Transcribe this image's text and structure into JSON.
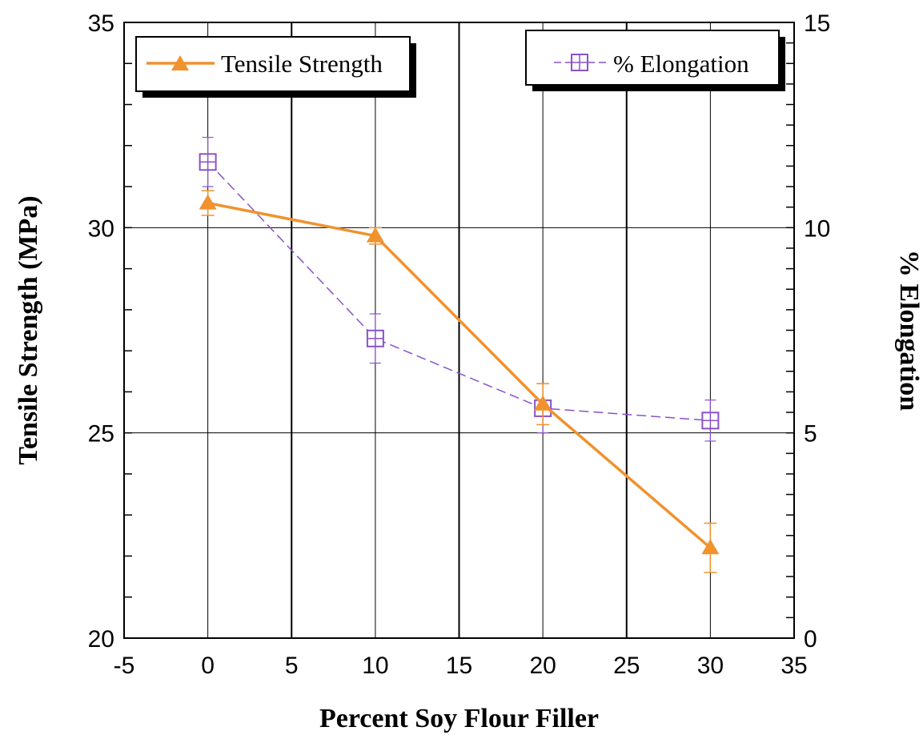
{
  "chart_data": {
    "type": "line",
    "xlabel": "Percent Soy Flour Filler",
    "ylabel": "Tensile Strength (MPa)",
    "y2label": "% Elongation",
    "xlim": [
      -5,
      35
    ],
    "ylim": [
      20,
      35
    ],
    "y2lim": [
      0,
      15
    ],
    "x_ticks": [
      "-5",
      "0",
      "5",
      "10",
      "15",
      "20",
      "25",
      "30",
      "35"
    ],
    "y_ticks": [
      "20",
      "25",
      "30",
      "35"
    ],
    "y2_ticks": [
      "0",
      "5",
      "10",
      "15"
    ],
    "grid": true,
    "legend": [
      "top-left",
      "top-right"
    ],
    "series": [
      {
        "name": "Tensile Strength",
        "axis": "left",
        "color": "#F0922E",
        "marker": "filled-triangle",
        "line": "solid",
        "x": [
          0,
          10,
          20,
          30
        ],
        "y": [
          30.6,
          29.8,
          25.7,
          22.2
        ],
        "error": [
          0.3,
          0.2,
          0.5,
          0.6
        ]
      },
      {
        "name": "% Elongation",
        "axis": "right",
        "color": "#8A52C8",
        "marker": "open-square-cross",
        "line": "dashed",
        "x": [
          0,
          10,
          20,
          30
        ],
        "y": [
          11.6,
          7.3,
          5.6,
          5.3
        ],
        "error": [
          0.6,
          0.6,
          0.6,
          0.5
        ]
      }
    ]
  }
}
